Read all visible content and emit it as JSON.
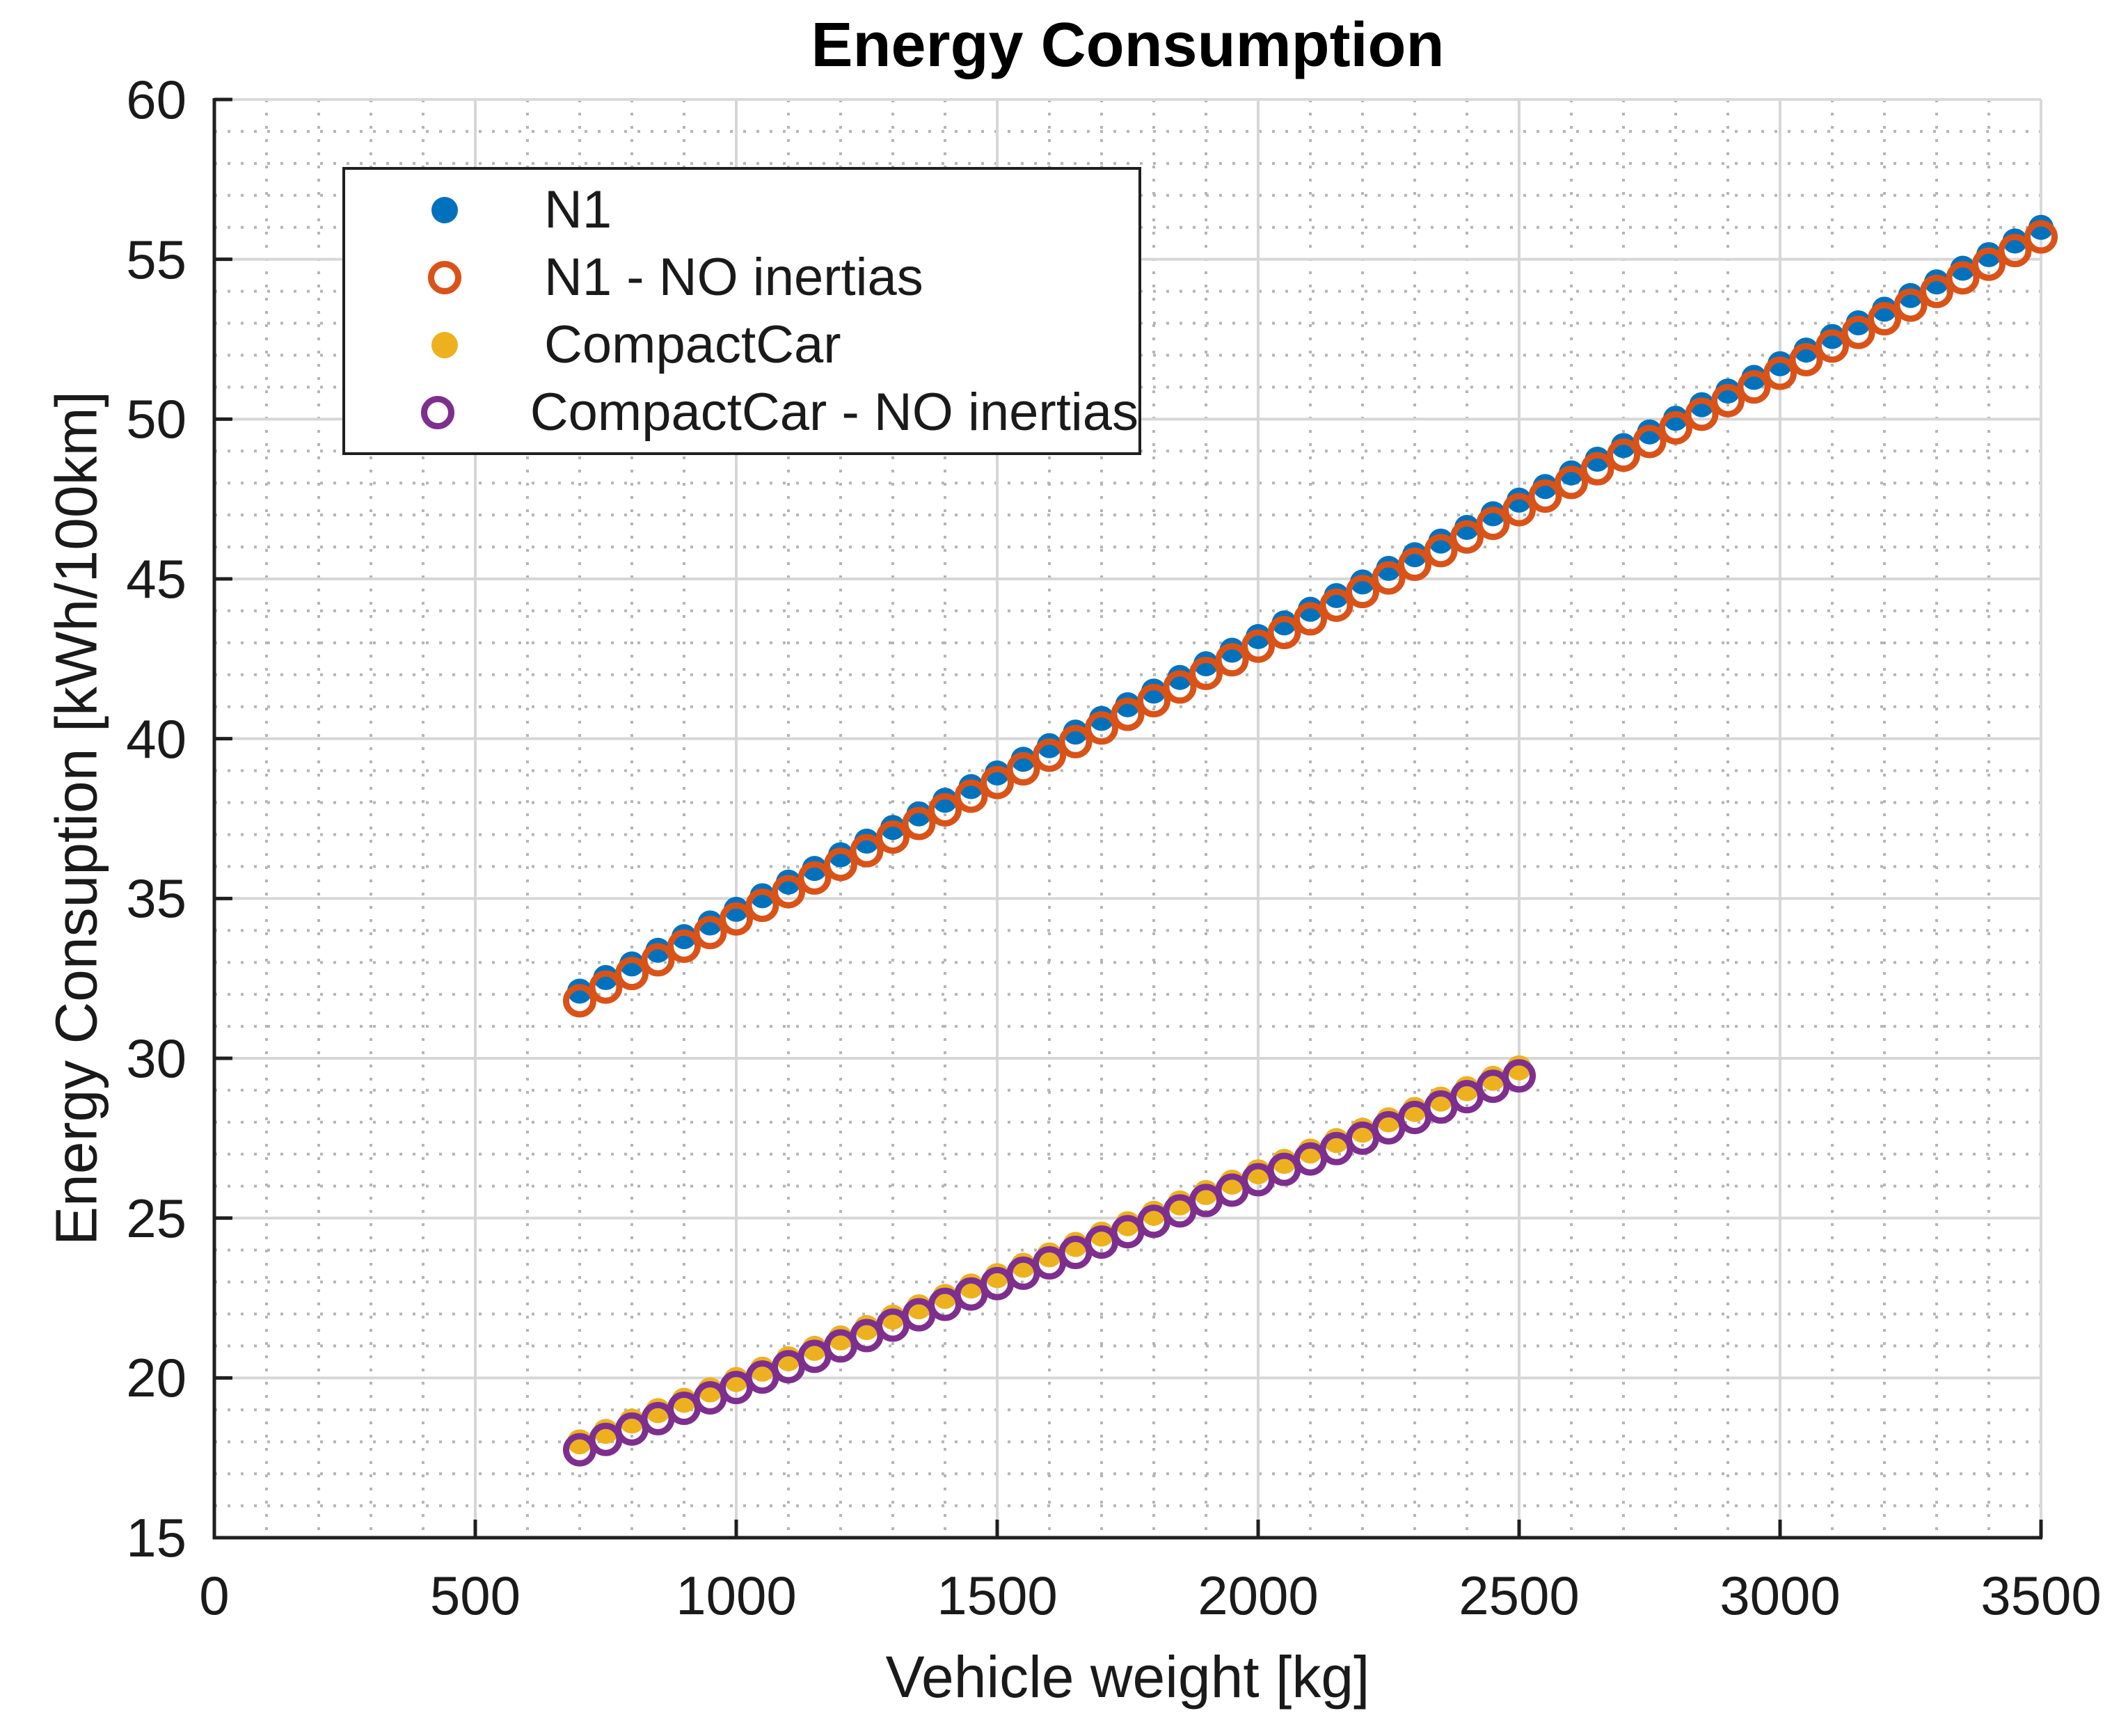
{
  "title": "Energy Consumption",
  "axes": {
    "xlabel": "Vehicle weight [kg]",
    "ylabel": "Energy Consuption [kWh/100km]"
  },
  "chart_data": {
    "type": "scatter",
    "title": "Energy Consumption",
    "xlabel": "Vehicle weight [kg]",
    "ylabel": "Energy Consuption [kWh/100km]",
    "xlim": [
      0,
      3500
    ],
    "ylim": [
      15,
      60
    ],
    "xticks": [
      0,
      500,
      1000,
      1500,
      2000,
      2500,
      3000,
      3500
    ],
    "yticks": [
      15,
      20,
      25,
      30,
      35,
      40,
      45,
      50,
      55,
      60
    ],
    "grid": {
      "major": "solid",
      "minor": "dotted",
      "x_minor_step": 100,
      "y_minor_step": 1
    },
    "legend_position": "top-left-inside",
    "series": [
      {
        "name": "N1",
        "marker": "filled-circle",
        "color": "#0072BD",
        "x_start": 700,
        "x_end": 3500,
        "x_step": 50,
        "y_start": 32.1,
        "y_end": 56.0,
        "trend": "linear"
      },
      {
        "name": "N1 - NO inertias",
        "marker": "open-circle",
        "color": "#D95319",
        "x_start": 700,
        "x_end": 3500,
        "x_step": 50,
        "y_start": 31.8,
        "y_end": 55.7,
        "trend": "linear"
      },
      {
        "name": "CompactCar",
        "marker": "filled-circle",
        "color": "#EDB120",
        "x_start": 700,
        "x_end": 2500,
        "x_step": 50,
        "y_start": 18.0,
        "y_end": 29.7,
        "trend": "linear"
      },
      {
        "name": "CompactCar - NO inertias",
        "marker": "open-circle",
        "color": "#7E2F8E",
        "x_start": 700,
        "x_end": 2500,
        "x_step": 50,
        "y_start": 17.75,
        "y_end": 29.45,
        "trend": "linear"
      }
    ],
    "style_colors": {
      "major_grid": "#d6d6d6",
      "minor_grid": "#b5b5b5",
      "dark_spine": "#1f1f1f",
      "light_spine": "#d9d9d9"
    }
  }
}
